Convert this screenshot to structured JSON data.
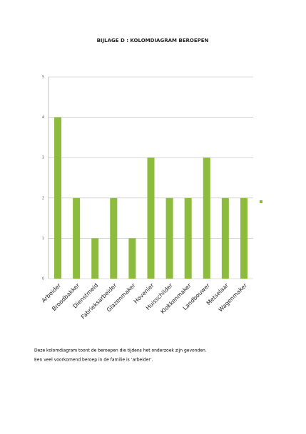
{
  "title": "BIJLAGE D : KOLOMDIAGRAM BEROEPEN",
  "chart_data": {
    "type": "bar",
    "categories": [
      "Arbeider",
      "Broodbakker",
      "Dienstmeid",
      "Fabrieksarbeider",
      "Glazenmaker",
      "Hovenier",
      "Huisschilder",
      "Klokkenmaker",
      "Landbouwer",
      "Metselaar",
      "Wagenmaker"
    ],
    "values": [
      4,
      2,
      1,
      2,
      1,
      3,
      2,
      2,
      3,
      2,
      2
    ],
    "color": "#8dbb3c",
    "ylim": [
      0,
      5
    ],
    "yticks": [
      0,
      1,
      2,
      3,
      4,
      5
    ],
    "grid": true
  },
  "caption": [
    "Deze kolomdiagram toont de beroepen die tijdens het onderzoek zijn gevonden.",
    "Een veel voorkomend beroep in de familie is ‘arbeider’."
  ]
}
